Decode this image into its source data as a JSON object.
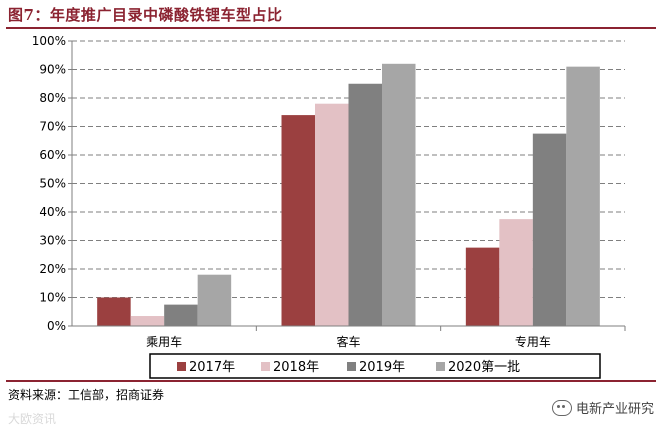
{
  "header": {
    "title": "图7：年度推广目录中磷酸铁锂车型占比"
  },
  "footer": {
    "source": "资料来源：工信部，招商证券",
    "watermark_left": "大欧资讯",
    "watermark_right": "电新产业研究",
    "wechat_icon": "wechat-icon"
  },
  "colors": {
    "s2017": "#9B4040",
    "s2018": "#E3C1C5",
    "s2019": "#808080",
    "s2020": "#A6A6A6",
    "brand": "#8B2331"
  },
  "chart_data": {
    "type": "bar",
    "title": "图7：年度推广目录中磷酸铁锂车型占比",
    "categories": [
      "乘用车",
      "客车",
      "专用车"
    ],
    "series": [
      {
        "name": "2017年",
        "values": [
          10,
          74,
          27.5
        ]
      },
      {
        "name": "2018年",
        "values": [
          3.5,
          78,
          37.5
        ]
      },
      {
        "name": "2019年",
        "values": [
          7.5,
          85,
          67.5
        ]
      },
      {
        "name": "2020第一批",
        "values": [
          18,
          92,
          91
        ]
      }
    ],
    "ylim": [
      0,
      100
    ],
    "yticks": [
      "0%",
      "10%",
      "20%",
      "30%",
      "40%",
      "50%",
      "60%",
      "70%",
      "80%",
      "90%",
      "100%"
    ],
    "grid": true,
    "legend": "bottom",
    "xlabel": "",
    "ylabel": ""
  }
}
